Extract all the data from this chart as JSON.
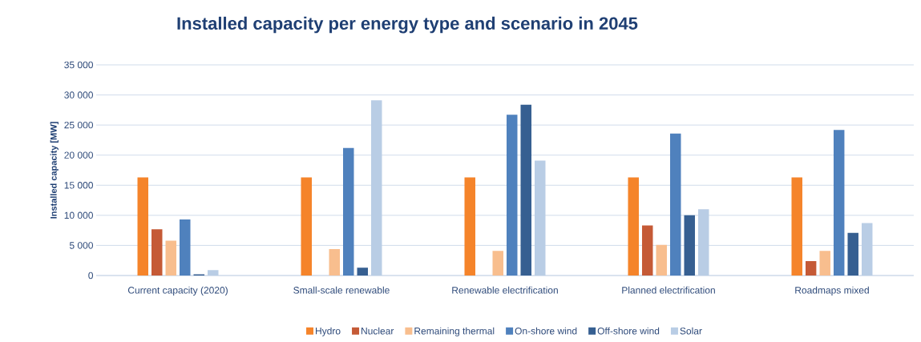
{
  "chart_data": {
    "type": "bar",
    "title": "Installed capacity per energy type and scenario in 2045",
    "ylabel": "Installed capacity [MW]",
    "categories": [
      "Current capacity (2020)",
      "Small-scale renewable",
      "Renewable electrification",
      "Planned electrification",
      "Roadmaps mixed"
    ],
    "series": [
      {
        "name": "Hydro",
        "color": "#f5842a",
        "values": [
          16300,
          16300,
          16300,
          16300,
          16300
        ]
      },
      {
        "name": "Nuclear",
        "color": "#c55a36",
        "values": [
          7700,
          0,
          0,
          8300,
          2400
        ]
      },
      {
        "name": "Remaining thermal",
        "color": "#f8be8e",
        "values": [
          5800,
          4400,
          4100,
          5100,
          4100
        ]
      },
      {
        "name": "On-shore wind",
        "color": "#4f81bd",
        "values": [
          9300,
          21200,
          26700,
          23600,
          24200
        ]
      },
      {
        "name": "Off-shore wind",
        "color": "#365f91",
        "values": [
          200,
          1300,
          28400,
          10000,
          7100
        ]
      },
      {
        "name": "Solar",
        "color": "#b9cde5",
        "values": [
          900,
          29100,
          19100,
          11000,
          8700
        ]
      }
    ],
    "ylim": [
      0,
      35000
    ],
    "yticks": [
      0,
      {
        "value": 5000,
        "label": "5 000"
      },
      {
        "value": 10000,
        "label": "10 000"
      },
      {
        "value": 15000,
        "label": "15 000"
      },
      {
        "value": 20000,
        "label": "20 000"
      },
      {
        "value": 25000,
        "label": "25 000"
      },
      {
        "value": 30000,
        "label": "30 000"
      },
      {
        "value": 35000,
        "label": "35 000"
      }
    ],
    "grid": "y",
    "legend": "bottom"
  }
}
